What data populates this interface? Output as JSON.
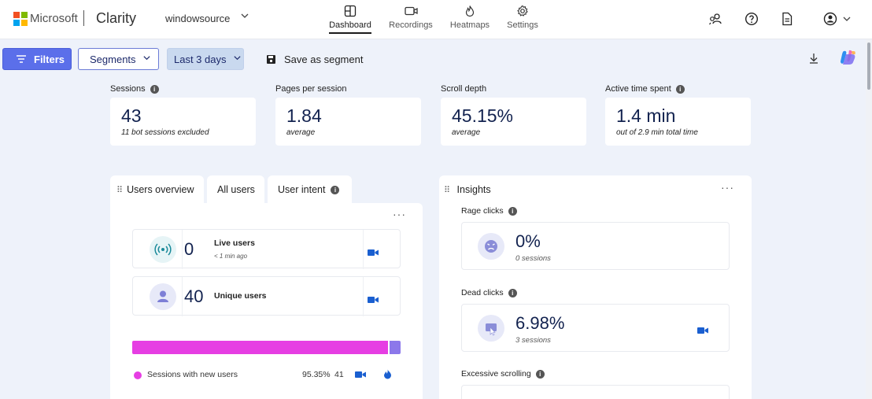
{
  "header": {
    "brand": "Microsoft",
    "product": "Clarity",
    "project": "windowsource",
    "nav": [
      {
        "label": "Dashboard",
        "icon": "dashboard-icon",
        "active": true
      },
      {
        "label": "Recordings",
        "icon": "video-camera-icon"
      },
      {
        "label": "Heatmaps",
        "icon": "flame-icon"
      },
      {
        "label": "Settings",
        "icon": "gear-icon"
      }
    ]
  },
  "toolbar": {
    "filters_label": "Filters",
    "segments_label": "Segments",
    "date_range_label": "Last 3 days",
    "save_segment_label": "Save as segment"
  },
  "metrics": [
    {
      "label": "Sessions",
      "value": "43",
      "sub": "11 bot sessions excluded",
      "info": true
    },
    {
      "label": "Pages per session",
      "value": "1.84",
      "sub": "average",
      "info": false
    },
    {
      "label": "Scroll depth",
      "value": "45.15%",
      "sub": "average",
      "info": false
    },
    {
      "label": "Active time spent",
      "value": "1.4 min",
      "sub": "out of 2.9 min total time",
      "info": true
    }
  ],
  "users_panel": {
    "tabs": [
      "Users overview",
      "All users",
      "User intent"
    ],
    "live": {
      "value": "0",
      "label": "Live users",
      "sub": "< 1 min ago"
    },
    "unique": {
      "value": "40",
      "label": "Unique users"
    },
    "breakdown": {
      "new_fraction": 0.9535
    },
    "legend": [
      {
        "label": "Sessions with new users",
        "pct": "95.35%",
        "count": "41",
        "color": "#e63ee3"
      }
    ]
  },
  "insights": {
    "title": "Insights",
    "items": [
      {
        "label": "Rage clicks",
        "value": "0%",
        "sub": "0 sessions"
      },
      {
        "label": "Dead clicks",
        "value": "6.98%",
        "sub": "3 sessions"
      },
      {
        "label": "Excessive scrolling",
        "value": "",
        "sub": ""
      }
    ]
  },
  "colors": {
    "accent": "#5b6fea",
    "new_users": "#e63ee3",
    "returning_users": "#8c78ea",
    "value_text": "#12224f"
  }
}
